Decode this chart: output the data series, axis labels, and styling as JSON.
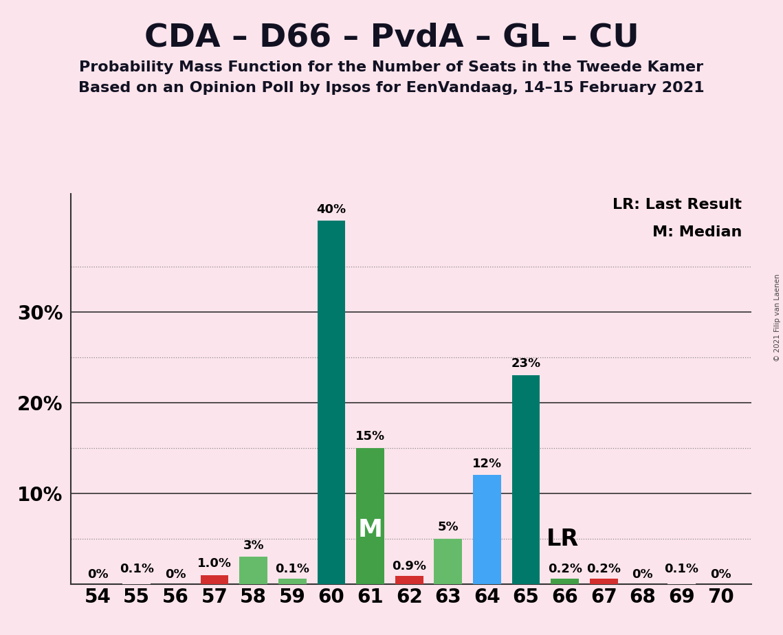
{
  "title": "CDA – D66 – PvdA – GL – CU",
  "subtitle1": "Probability Mass Function for the Number of Seats in the Tweede Kamer",
  "subtitle2": "Based on an Opinion Poll by Ipsos for EenVandaag, 14–15 February 2021",
  "copyright": "© 2021 Filip van Laenen",
  "legend_lr": "LR: Last Result",
  "legend_m": "M: Median",
  "seats": [
    54,
    55,
    56,
    57,
    58,
    59,
    60,
    61,
    62,
    63,
    64,
    65,
    66,
    67,
    68,
    69,
    70
  ],
  "values": [
    0.0,
    0.1,
    0.0,
    1.0,
    3.0,
    0.1,
    40.0,
    15.0,
    0.9,
    5.0,
    12.0,
    23.0,
    0.2,
    0.2,
    0.0,
    0.1,
    0.0
  ],
  "labels": [
    "0%",
    "0.1%",
    "0%",
    "1.0%",
    "3%",
    "0.1%",
    "40%",
    "15%",
    "0.9%",
    "5%",
    "12%",
    "23%",
    "0.2%",
    "0.2%",
    "0%",
    "0.1%",
    "0%"
  ],
  "colors": [
    "#fce4ec",
    "#fce4ec",
    "#fce4ec",
    "#d32f2f",
    "#66bb6a",
    "#66bb6a",
    "#00796b",
    "#43a047",
    "#d32f2f",
    "#66bb6a",
    "#42a5f5",
    "#00796b",
    "#43a047",
    "#d32f2f",
    "#fce4ec",
    "#fce4ec",
    "#fce4ec"
  ],
  "median_seat": 61,
  "lr_seat": 65,
  "background_color": "#fce4ec",
  "ylim_max": 43,
  "title_fontsize": 34,
  "subtitle_fontsize": 16,
  "label_fontsize": 13,
  "axis_fontsize": 20,
  "solid_grid_lines": [
    10,
    20,
    30
  ],
  "dotted_grid_lines": [
    5,
    15,
    25,
    35
  ],
  "ytick_positions": [
    10,
    20,
    30
  ],
  "ytick_labels": [
    "10%",
    "20%",
    "30%"
  ]
}
